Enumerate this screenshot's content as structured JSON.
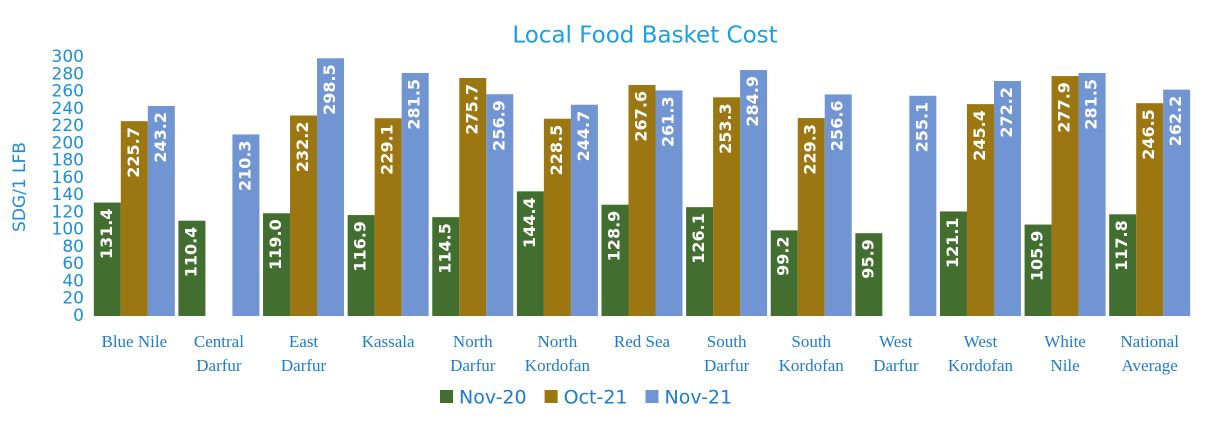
{
  "chart_data": {
    "type": "bar",
    "title": "Local Food Basket Cost",
    "y_label": "SDG/1 LFB",
    "categories": [
      "Blue Nile",
      "Central\nDarfur",
      "East\nDarfur",
      "Kassala",
      "North\nDarfur",
      "North\nKordofan",
      "Red Sea",
      "South\nDarfur",
      "South\nKordofan",
      "West\nDarfur",
      "West\nKordofan",
      "White\nNile",
      "National\nAverage"
    ],
    "series": [
      {
        "name": "Nov-20",
        "color": "#426f2f",
        "values": [
          131.4,
          110.4,
          119.0,
          116.9,
          114.5,
          144.4,
          128.9,
          126.1,
          99.2,
          95.9,
          121.1,
          105.9,
          117.8
        ],
        "value_labels": [
          "131.4",
          "110.4",
          "119.0",
          "116.9",
          "114.5",
          "144.4",
          "128.9",
          "126.1",
          "99.2",
          "95.9",
          "121.1",
          "105.9",
          "117.8"
        ]
      },
      {
        "name": "Oct-21",
        "color": "#9c7610",
        "values": [
          225.7,
          null,
          232.2,
          229.1,
          275.7,
          228.5,
          267.6,
          253.3,
          229.3,
          null,
          245.4,
          277.9,
          246.5
        ],
        "value_labels": [
          "225.7",
          null,
          "232.2",
          "229.1",
          "275.7",
          "228.5",
          "267.6",
          "253.3",
          "229.3",
          null,
          "245.4",
          "277.9",
          "246.5"
        ]
      },
      {
        "name": "Nov-21",
        "color": "#7095d2",
        "values": [
          243.2,
          210.3,
          298.5,
          281.5,
          256.9,
          244.7,
          261.3,
          284.9,
          256.6,
          255.1,
          272.2,
          281.5,
          262.2
        ],
        "value_labels": [
          "243.2",
          "210.3",
          "298.5",
          "281.5",
          "256.9",
          "244.7",
          "261.3",
          "284.9",
          "256.6",
          "255.1",
          "272.2",
          "281.5",
          "262.2"
        ]
      }
    ],
    "ylim": [
      0,
      300
    ],
    "yticks": [
      0,
      20,
      40,
      60,
      80,
      100,
      120,
      140,
      160,
      180,
      200,
      220,
      240,
      260,
      280,
      300
    ],
    "grid": false,
    "legend": "bottom"
  }
}
